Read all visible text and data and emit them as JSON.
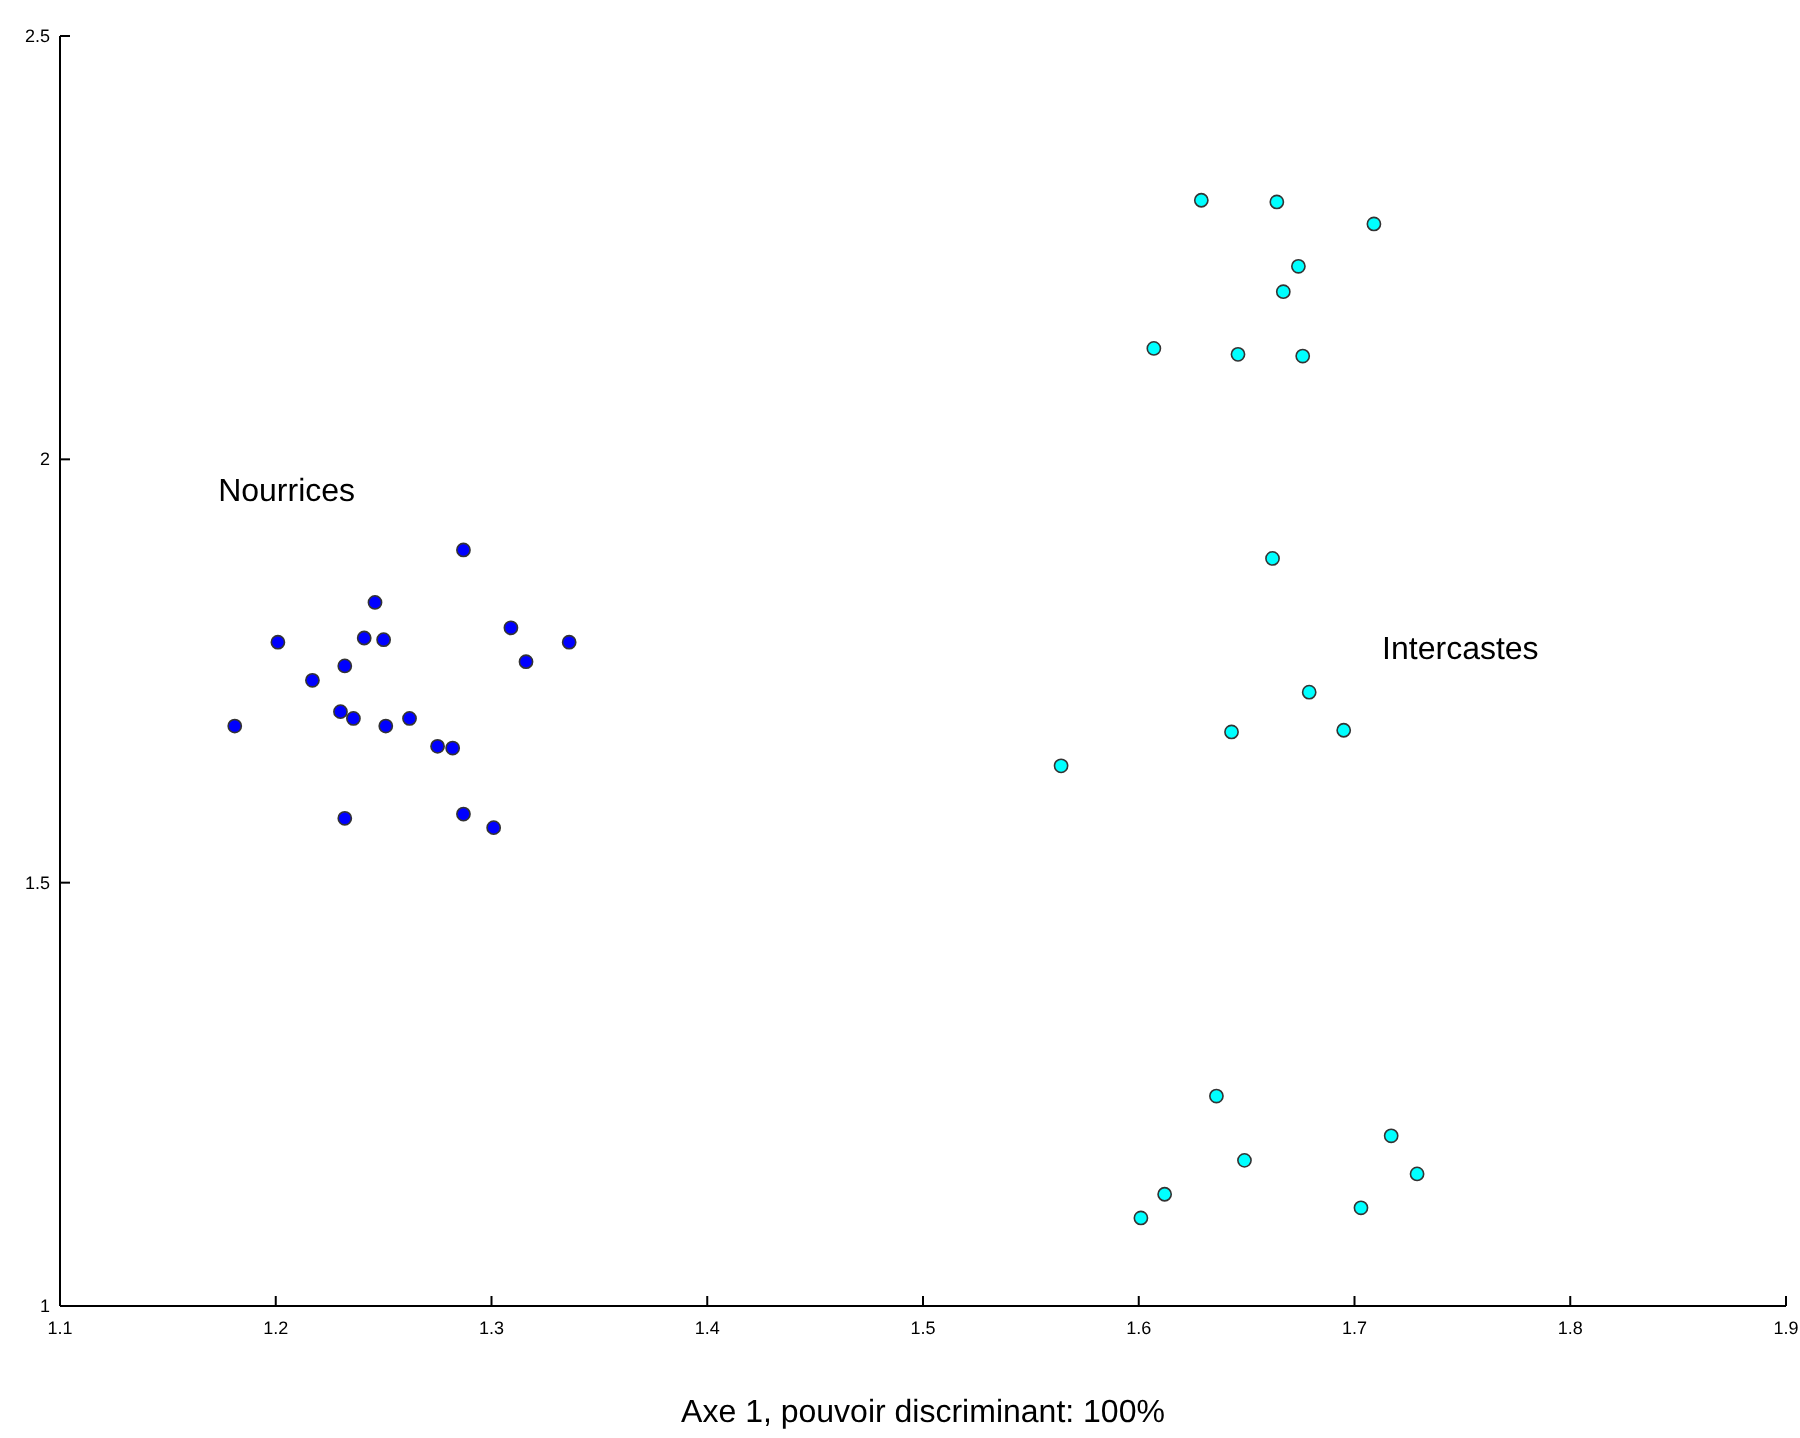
{
  "chart_data": {
    "type": "scatter",
    "xlabel": "Axe 1, pouvoir discriminant: 100%",
    "xlim": [
      1.1,
      1.9
    ],
    "xticks": [
      1.1,
      1.2,
      1.3,
      1.4,
      1.5,
      1.6,
      1.7,
      1.8,
      1.9
    ],
    "ylim": [
      1,
      2.5
    ],
    "yticks": [
      1,
      1.5,
      2,
      2.5
    ],
    "grid": false,
    "marker": "circle",
    "series": [
      {
        "name": "Nourrices",
        "color": "#0000ff",
        "x": [
          1.287,
          1.246,
          1.201,
          1.241,
          1.25,
          1.309,
          1.336,
          1.316,
          1.232,
          1.217,
          1.23,
          1.236,
          1.251,
          1.262,
          1.181,
          1.275,
          1.282,
          1.232,
          1.287,
          1.301
        ],
        "values": [
          1.893,
          1.831,
          1.784,
          1.789,
          1.787,
          1.801,
          1.784,
          1.761,
          1.756,
          1.739,
          1.702,
          1.694,
          1.685,
          1.694,
          1.685,
          1.661,
          1.659,
          1.576,
          1.581,
          1.565
        ]
      },
      {
        "name": "Intercastes",
        "color": "#00ffff",
        "x": [
          1.629,
          1.664,
          1.709,
          1.674,
          1.667,
          1.607,
          1.646,
          1.676,
          1.662,
          1.679,
          1.643,
          1.695,
          1.564,
          1.636,
          1.717,
          1.649,
          1.729,
          1.612,
          1.703,
          1.601
        ],
        "values": [
          2.306,
          2.304,
          2.278,
          2.228,
          2.198,
          2.131,
          2.124,
          2.122,
          1.883,
          1.725,
          1.678,
          1.68,
          1.638,
          1.248,
          1.201,
          1.172,
          1.156,
          1.132,
          1.116,
          1.104
        ]
      }
    ]
  }
}
